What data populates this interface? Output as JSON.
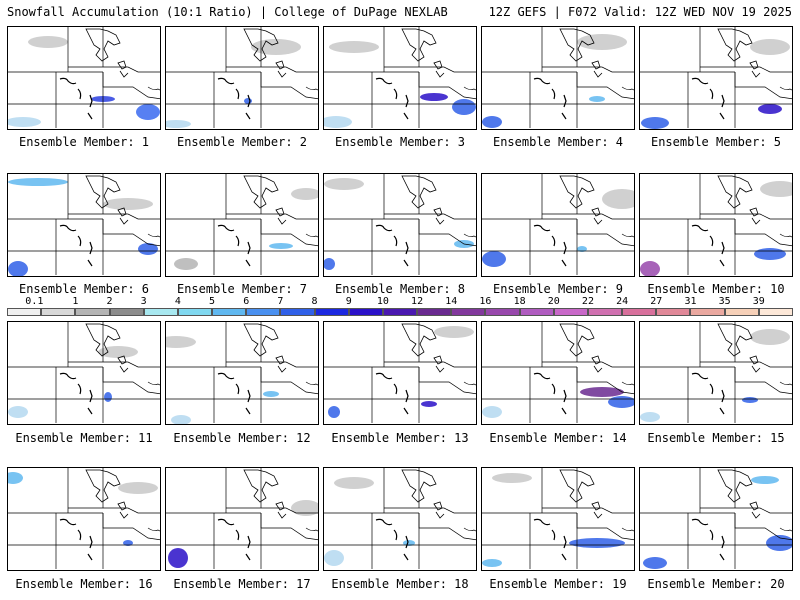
{
  "header": {
    "left": "Snowfall Accumulation (10:1 Ratio) | College of DuPage NEXLAB",
    "right": "12Z GEFS | F072 Valid: 12Z WED NOV 19 2025"
  },
  "colorbar": {
    "labels": [
      "0.1",
      "1",
      "2",
      "3",
      "4",
      "5",
      "6",
      "7",
      "8",
      "9",
      "10",
      "12",
      "14",
      "16",
      "18",
      "20",
      "22",
      "24",
      "27",
      "31",
      "35",
      "39"
    ],
    "colors": [
      "#f0f0f0",
      "#d8d8d8",
      "#b4b4b4",
      "#8c8c8c",
      "#a8e8f0",
      "#80d8f0",
      "#60b8f0",
      "#4a90f0",
      "#3060e8",
      "#1c28e0",
      "#2a10c8",
      "#4a18b0",
      "#6a2a90",
      "#82389c",
      "#9848ac",
      "#b05cc0",
      "#c868c8",
      "#d070b0",
      "#d8709c",
      "#e08898",
      "#eaa8a0",
      "#f6d0b8",
      "#fde8d8"
    ]
  },
  "panels": [
    {
      "label": "Ensemble Member: 1"
    },
    {
      "label": "Ensemble Member: 2"
    },
    {
      "label": "Ensemble Member: 3"
    },
    {
      "label": "Ensemble Member: 4"
    },
    {
      "label": "Ensemble Member: 5"
    },
    {
      "label": "Ensemble Member: 6"
    },
    {
      "label": "Ensemble Member: 7"
    },
    {
      "label": "Ensemble Member: 8"
    },
    {
      "label": "Ensemble Member: 9"
    },
    {
      "label": "Ensemble Member: 10"
    },
    {
      "label": "Ensemble Member: 11"
    },
    {
      "label": "Ensemble Member: 12"
    },
    {
      "label": "Ensemble Member: 13"
    },
    {
      "label": "Ensemble Member: 14"
    },
    {
      "label": "Ensemble Member: 15"
    },
    {
      "label": "Ensemble Member: 16"
    },
    {
      "label": "Ensemble Member: 17"
    },
    {
      "label": "Ensemble Member: 18"
    },
    {
      "label": "Ensemble Member: 19"
    },
    {
      "label": "Ensemble Member: 20"
    }
  ]
}
